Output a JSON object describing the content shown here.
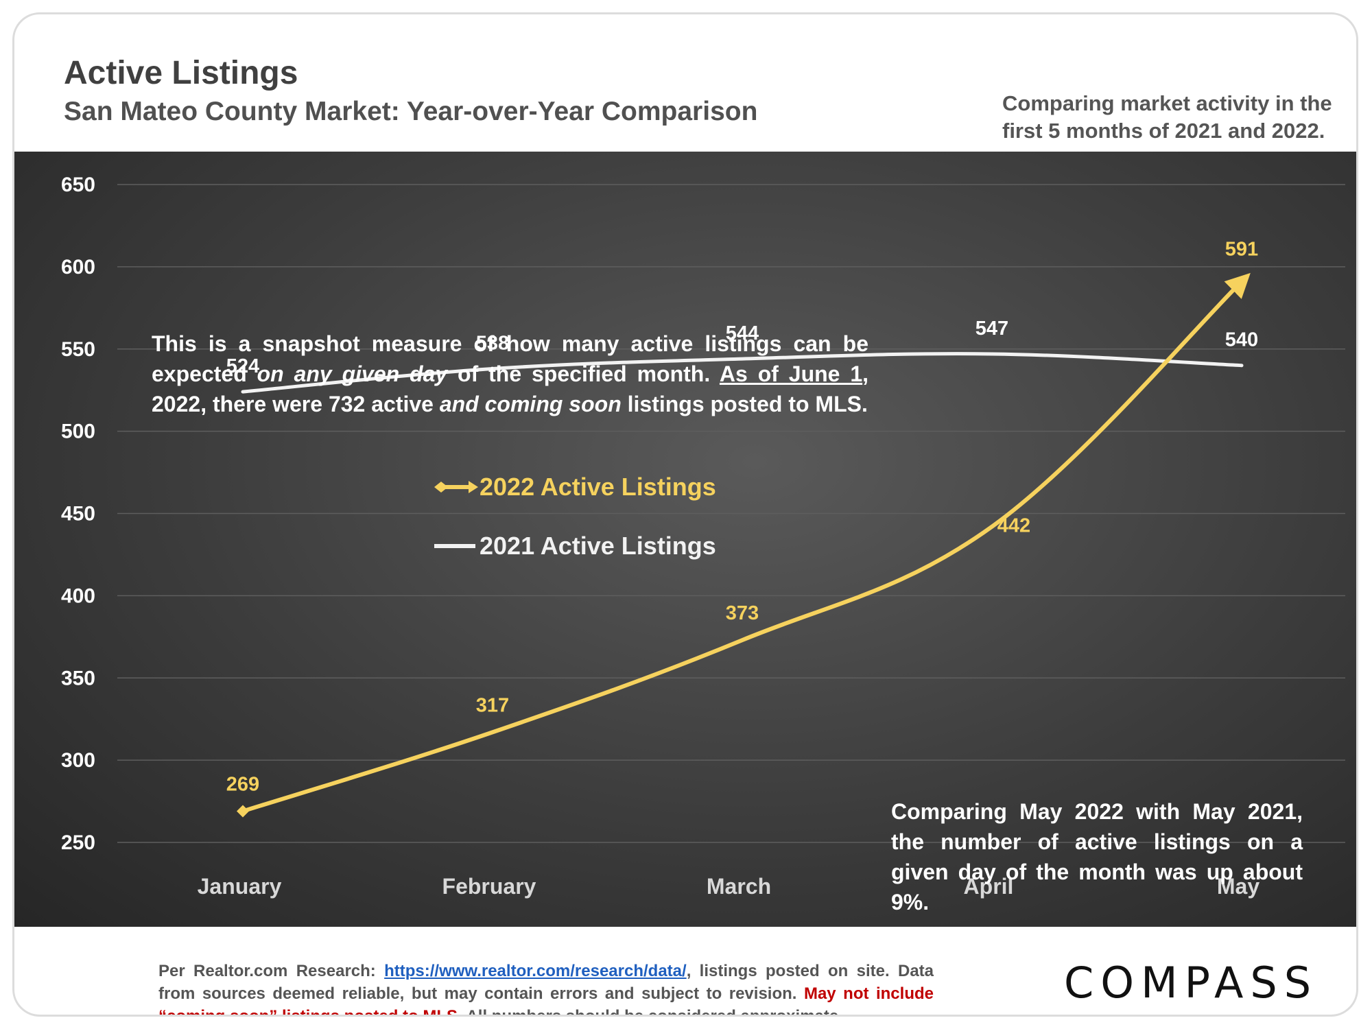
{
  "header": {
    "title": "Active Listings",
    "subtitle": "San Mateo County Market: Year-over-Year Comparison",
    "note": "Comparing market activity in the first 5 months of 2021 and 2022."
  },
  "annotations": {
    "snapshot_part1": "This is a snapshot measure of how many active listings can be expected ",
    "snapshot_italic1": "on any given day",
    "snapshot_part2": " of the specified month. ",
    "snapshot_underline": "As of June 1",
    "snapshot_part3": ", 2022, there were 732 active ",
    "snapshot_italic2": "and coming soon",
    "snapshot_part4": " listings posted to MLS.",
    "comparison": "Comparing May 2022 with May 2021, the number of active listings on a given day of the month was up about 9%."
  },
  "footer": {
    "prefix": "Per Realtor.com Research: ",
    "link": "https://www.realtor.com/research/data/",
    "after_link": ", listings posted on site. Data from sources deemed reliable, but may contain errors and subject to revision. ",
    "red_text": "May not include “coming soon” listings posted to MLS.",
    "suffix": " All numbers should be considered approximate.",
    "logo": "COMPASS"
  },
  "colors": {
    "series_2022": "#f6d25e",
    "series_2021": "#f2f2f2",
    "panel_bg": "#3c3c3c",
    "grid": "#5e5e5e"
  },
  "chart_data": {
    "type": "line",
    "categories": [
      "January",
      "February",
      "March",
      "April",
      "May"
    ],
    "ylim": [
      250,
      650
    ],
    "yticks": [
      250,
      300,
      350,
      400,
      450,
      500,
      550,
      600,
      650
    ],
    "grid": true,
    "legend_position": "center-left",
    "series": [
      {
        "name": "2022 Active Listings",
        "values": [
          269,
          317,
          373,
          442,
          591
        ],
        "color": "#f6d25e",
        "smooth": true,
        "arrow": true
      },
      {
        "name": "2021 Active Listings",
        "values": [
          524,
          538,
          544,
          547,
          540
        ],
        "color": "#f2f2f2",
        "smooth": true,
        "arrow": false
      }
    ]
  }
}
